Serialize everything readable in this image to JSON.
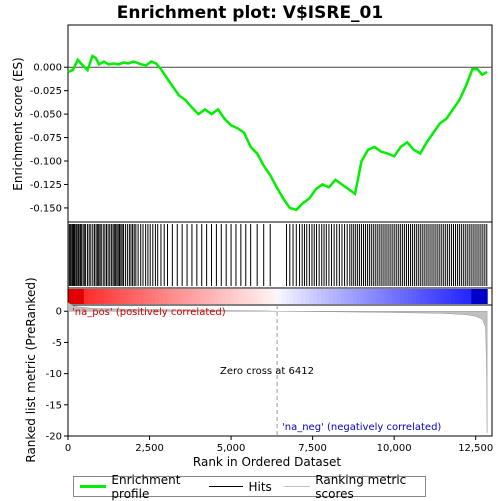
{
  "title": "Enrichment plot: V$ISRE_01",
  "top_panel": {
    "ylabel": "Enrichment score (ES)",
    "ylim": [
      -0.165,
      0.045
    ],
    "yticks": [
      "0.000",
      "-0.025",
      "-0.050",
      "-0.075",
      "-0.100",
      "-0.125",
      "-0.150"
    ],
    "line_color": "#00ee00"
  },
  "bottom_panel": {
    "ylabel": "Ranked list metric (PreRanked)",
    "xlabel": "Rank in Ordered Dataset",
    "ylim": [
      -20,
      1
    ],
    "yticks": [
      "0",
      "-5",
      "-10",
      "-15",
      "-20"
    ],
    "xticks": [
      "0",
      "2,500",
      "5,000",
      "7,500",
      "10,000",
      "12,500"
    ],
    "zero_cross_label": "Zero cross at 6412",
    "pos_label": "'na_pos' (positively correlated)",
    "neg_label": "'na_neg' (negatively correlated)",
    "pos_color": "#cc0000",
    "neg_color": "#0000cc"
  },
  "legend": {
    "enrichment": "Enrichment profile",
    "hits": "Hits",
    "ranking": "Ranking metric scores"
  },
  "chart_data": {
    "type": "line",
    "x_range": [
      0,
      13000
    ],
    "zero_cross": 6412,
    "n_genes": 12850,
    "series": [
      {
        "name": "Enrichment profile",
        "x": [
          0,
          150,
          300,
          450,
          600,
          750,
          850,
          950,
          1100,
          1250,
          1400,
          1550,
          1700,
          1850,
          2000,
          2100,
          2250,
          2400,
          2550,
          2700,
          2850,
          3000,
          3200,
          3400,
          3600,
          3800,
          4000,
          4200,
          4400,
          4600,
          4800,
          5000,
          5200,
          5400,
          5600,
          5800,
          6000,
          6200,
          6400,
          6600,
          6800,
          7000,
          7200,
          7400,
          7600,
          7800,
          8000,
          8200,
          8400,
          8600,
          8800,
          9000,
          9200,
          9400,
          9600,
          9800,
          10000,
          10200,
          10400,
          10600,
          10800,
          11000,
          11200,
          11400,
          11600,
          11800,
          12000,
          12200,
          12400,
          12550,
          12700,
          12850
        ],
        "y": [
          -0.005,
          -0.003,
          0.008,
          0.002,
          -0.003,
          0.012,
          0.01,
          0.003,
          0.006,
          0.003,
          0.004,
          0.003,
          0.005,
          0.004,
          0.006,
          0.005,
          0.003,
          0.002,
          0.006,
          0.004,
          -0.002,
          -0.01,
          -0.02,
          -0.03,
          -0.035,
          -0.043,
          -0.05,
          -0.045,
          -0.05,
          -0.045,
          -0.055,
          -0.062,
          -0.065,
          -0.07,
          -0.085,
          -0.092,
          -0.105,
          -0.115,
          -0.128,
          -0.14,
          -0.15,
          -0.152,
          -0.145,
          -0.14,
          -0.13,
          -0.125,
          -0.128,
          -0.12,
          -0.125,
          -0.13,
          -0.135,
          -0.1,
          -0.088,
          -0.085,
          -0.09,
          -0.092,
          -0.095,
          -0.085,
          -0.08,
          -0.088,
          -0.092,
          -0.08,
          -0.07,
          -0.06,
          -0.055,
          -0.045,
          -0.035,
          -0.02,
          -0.002,
          -0.002,
          -0.008,
          -0.005
        ]
      },
      {
        "name": "Ranking metric scores",
        "x": [
          0,
          100,
          300,
          800,
          2000,
          4000,
          6000,
          6412,
          8000,
          10000,
          11500,
          12200,
          12500,
          12700,
          12800,
          12830,
          12850
        ],
        "y": [
          1.4,
          1.0,
          0.7,
          0.45,
          0.3,
          0.18,
          0.06,
          0.0,
          -0.08,
          -0.2,
          -0.35,
          -0.55,
          -0.8,
          -1.3,
          -2.5,
          -8.0,
          -19.5
        ]
      }
    ],
    "hits": [
      40,
      70,
      100,
      140,
      170,
      200,
      240,
      270,
      310,
      340,
      380,
      410,
      460,
      500,
      540,
      600,
      650,
      700,
      760,
      810,
      860,
      900,
      940,
      980,
      1020,
      1080,
      1130,
      1180,
      1230,
      1280,
      1330,
      1380,
      1420,
      1460,
      1500,
      1540,
      1580,
      1620,
      1660,
      1700,
      1760,
      1820,
      1880,
      1930,
      1980,
      2030,
      2080,
      2150,
      2230,
      2300,
      2380,
      2450,
      2520,
      2600,
      2680,
      2750,
      2850,
      2950,
      3050,
      3200,
      3350,
      3500,
      3650,
      3800,
      3950,
      4100,
      4250,
      4400,
      4550,
      4700,
      4850,
      5000,
      5150,
      5300,
      5450,
      5600,
      5800,
      6000,
      6200,
      6700,
      6800,
      6900,
      7000,
      7100,
      7180,
      7250,
      7320,
      7400,
      7480,
      7550,
      7620,
      7700,
      7780,
      7850,
      7920,
      8000,
      8080,
      8160,
      8240,
      8320,
      8400,
      8480,
      8560,
      8640,
      8700,
      8760,
      8820,
      8880,
      8940,
      9000,
      9060,
      9120,
      9180,
      9240,
      9300,
      9360,
      9420,
      9480,
      9540,
      9600,
      9660,
      9720,
      9780,
      9840,
      9900,
      9960,
      10020,
      10080,
      10140,
      10200,
      10260,
      10320,
      10380,
      10440,
      10500,
      10560,
      10620,
      10680,
      10740,
      10800,
      10860,
      10920,
      10980,
      11040,
      11100,
      11160,
      11220,
      11280,
      11340,
      11400,
      11460,
      11520,
      11580,
      11640,
      11700,
      11760,
      11820,
      11880,
      11940,
      12000,
      12060,
      12120,
      12180,
      12240,
      12300,
      12360,
      12420,
      12480,
      12540,
      12600,
      12660,
      12720,
      12780,
      12840
    ]
  }
}
